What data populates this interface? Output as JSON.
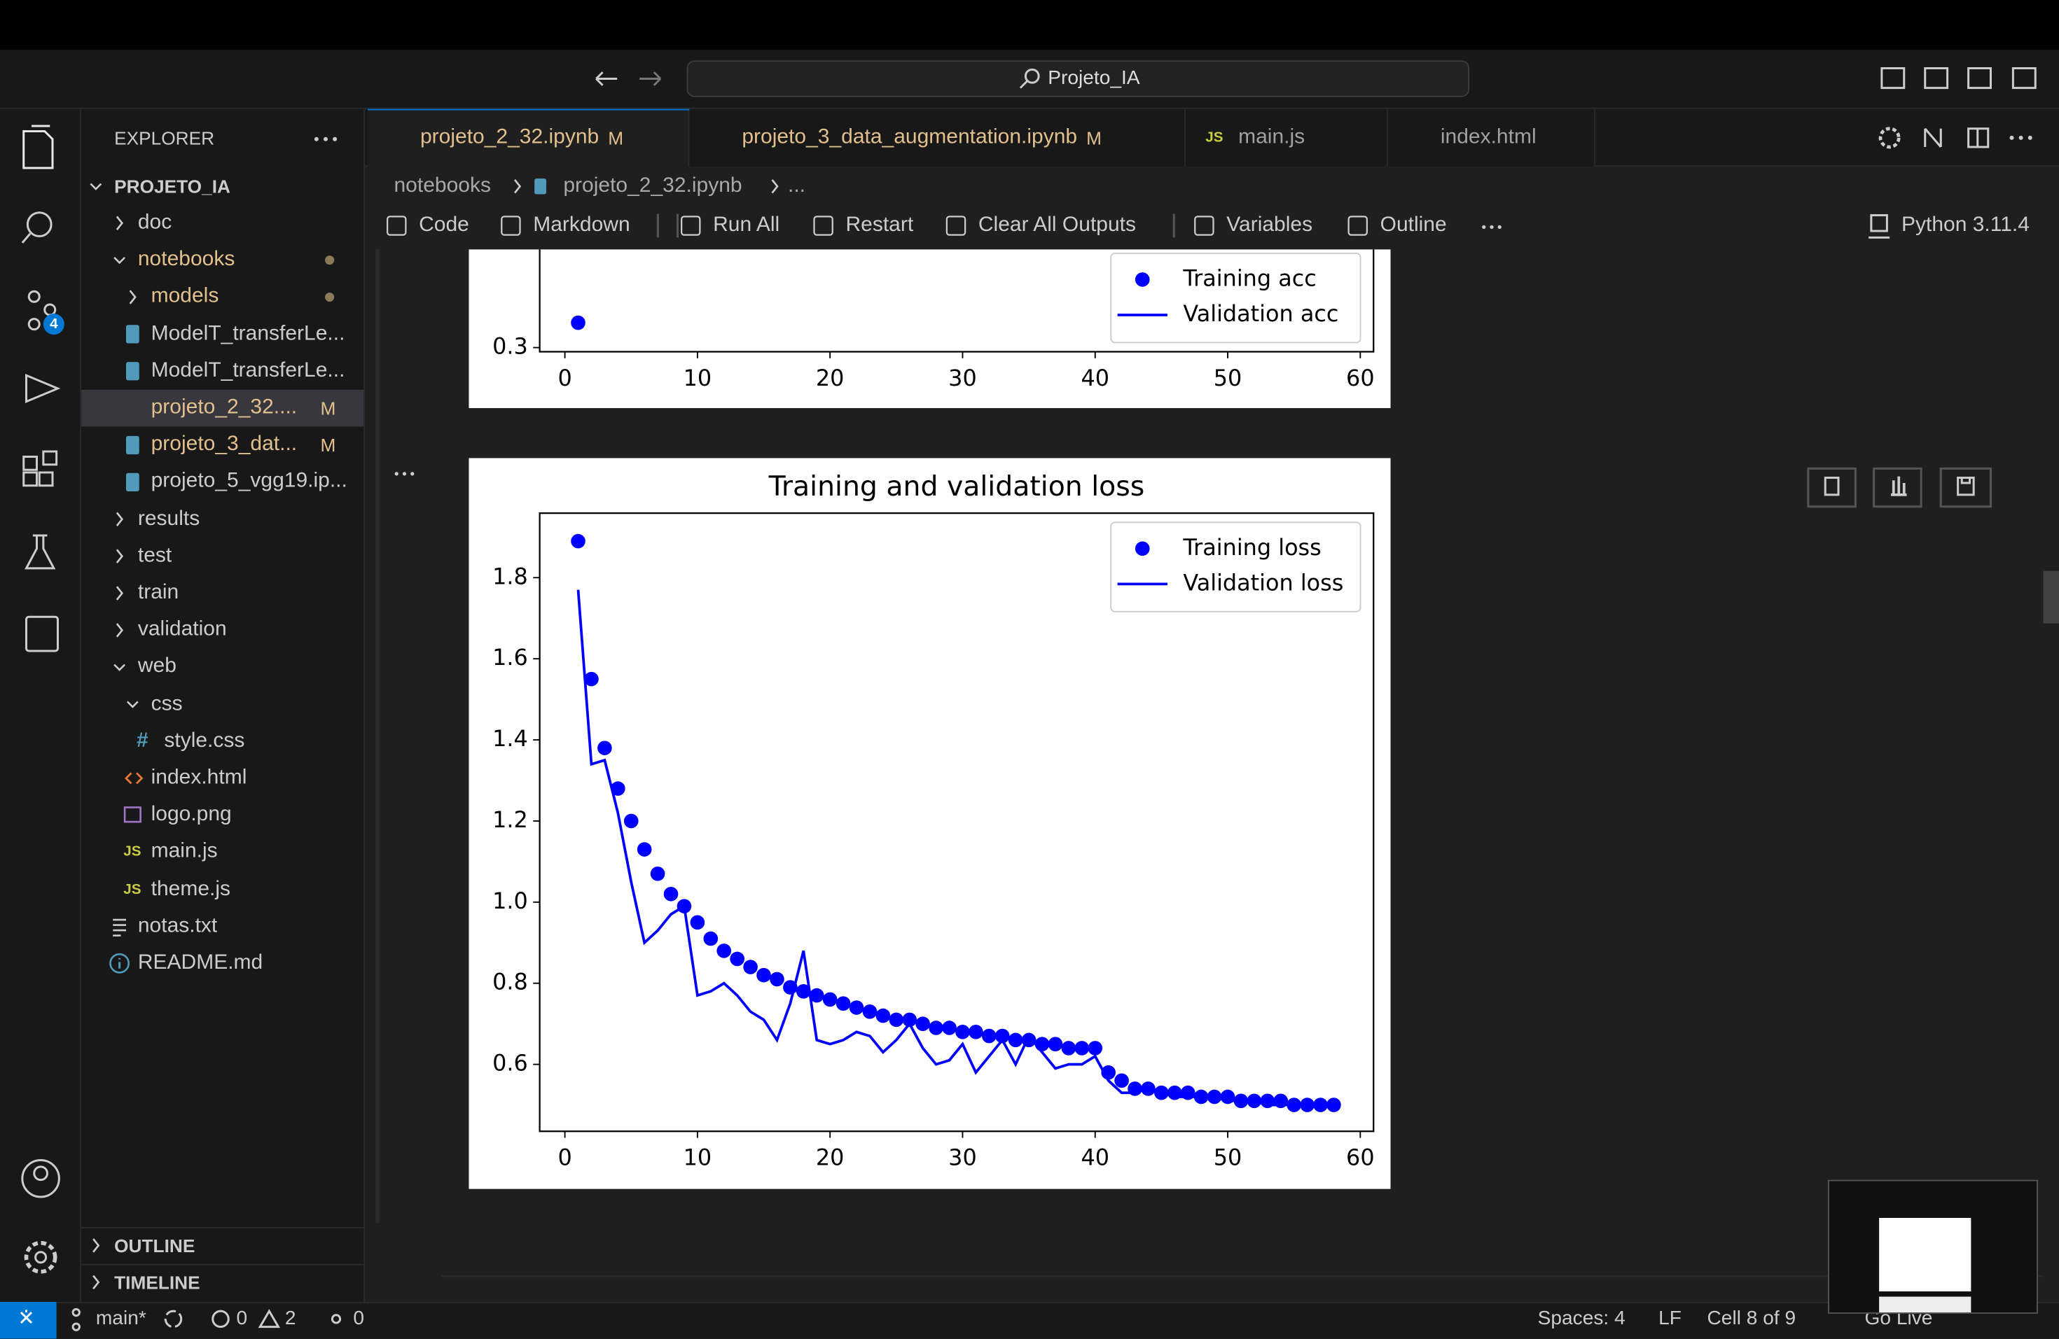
{
  "title_bar": {
    "search": "Projeto_IA"
  },
  "activity_bar": {
    "source_control_badge": "4"
  },
  "tabs": [
    {
      "label": "projeto_2_32.ipynb",
      "badge": "M",
      "kind": "notebook",
      "active": true
    },
    {
      "label": "projeto_3_data_augmentation.ipynb",
      "badge": "M",
      "kind": "notebook"
    },
    {
      "label": "main.js",
      "kind": "js",
      "icon_text": "JS"
    },
    {
      "label": "index.html",
      "kind": "html"
    }
  ],
  "explorer": {
    "title": "EXPLORER",
    "root": "PROJETO_IA",
    "items": [
      {
        "label": "doc",
        "kind": "folder"
      },
      {
        "label": "notebooks",
        "kind": "folder",
        "expanded": true,
        "modified": true,
        "children": [
          {
            "label": "models",
            "kind": "folder",
            "modified": true
          },
          {
            "label": "ModelT_transferLe...",
            "kind": "notebook"
          },
          {
            "label": "ModelT_transferLe...",
            "kind": "notebook"
          },
          {
            "label": "projeto_2_32....",
            "kind": "notebook",
            "badge": "M",
            "selected": true
          },
          {
            "label": "projeto_3_dat...",
            "kind": "notebook",
            "badge": "M"
          },
          {
            "label": "projeto_5_vgg19.ip...",
            "kind": "notebook"
          }
        ]
      },
      {
        "label": "results",
        "kind": "folder"
      },
      {
        "label": "test",
        "kind": "folder"
      },
      {
        "label": "train",
        "kind": "folder"
      },
      {
        "label": "validation",
        "kind": "folder"
      },
      {
        "label": "web",
        "kind": "folder",
        "expanded": true,
        "children": [
          {
            "label": "css",
            "kind": "folder",
            "expanded": true,
            "children": [
              {
                "label": "style.css",
                "kind": "css",
                "icon_text": "#"
              }
            ]
          },
          {
            "label": "index.html",
            "kind": "html"
          },
          {
            "label": "logo.png",
            "kind": "image"
          },
          {
            "label": "main.js",
            "kind": "js",
            "icon_text": "JS"
          },
          {
            "label": "theme.js",
            "kind": "js",
            "icon_text": "JS"
          }
        ]
      },
      {
        "label": "notas.txt",
        "kind": "text"
      },
      {
        "label": "README.md",
        "kind": "info"
      }
    ],
    "sections": [
      "OUTLINE",
      "TIMELINE"
    ]
  },
  "breadcrumb": [
    "notebooks",
    "projeto_2_32.ipynb",
    "..."
  ],
  "toolbar": {
    "actions": [
      "Code",
      "Markdown",
      "Run All",
      "Restart",
      "Clear All Outputs",
      "Variables",
      "Outline"
    ],
    "kernel": "Python 3.11.4"
  },
  "status_bar": {
    "branch": "main*",
    "errors": "0",
    "warnings": "2",
    "ports": "0",
    "right": [
      "Spaces: 4",
      "LF",
      "Cell 8 of 9",
      "Go Live"
    ]
  },
  "chart_data": [
    {
      "type": "line",
      "x": [
        1
      ],
      "xlim": [
        -1.9,
        61
      ],
      "xticks": [
        0,
        10,
        20,
        30,
        40,
        50,
        60
      ],
      "ylim": [
        0.295,
        0.466
      ],
      "yticks": [
        0.3
      ],
      "legend": "lower right",
      "series": [
        {
          "name": "Training acc",
          "color": "#0000ff",
          "style": "dots",
          "values": [
            0.33
          ]
        },
        {
          "name": "Validation acc",
          "color": "#0000ff",
          "style": "line",
          "values": [
            null
          ]
        }
      ]
    },
    {
      "type": "line",
      "title": "Training and validation loss",
      "x": [
        1,
        2,
        3,
        4,
        5,
        6,
        7,
        8,
        9,
        10,
        11,
        12,
        13,
        14,
        15,
        16,
        17,
        18,
        19,
        20,
        21,
        22,
        23,
        24,
        25,
        26,
        27,
        28,
        29,
        30,
        31,
        32,
        33,
        34,
        35,
        36,
        37,
        38,
        39,
        40,
        41,
        42,
        43,
        44,
        45,
        46,
        47,
        48,
        49,
        50,
        51,
        52,
        53,
        54,
        55,
        56,
        57,
        58
      ],
      "xlim": [
        -1.9,
        61
      ],
      "xticks": [
        0,
        10,
        20,
        30,
        40,
        50,
        60
      ],
      "ylim": [
        0.435,
        1.959
      ],
      "yticks": [
        0.6,
        0.8,
        {
          "value": 1,
          "label": "1.0"
        },
        1.2,
        1.4,
        1.6,
        1.8
      ],
      "legend": "upper right",
      "series": [
        {
          "name": "Training loss",
          "color": "#0000ff",
          "style": "dots",
          "values": [
            1.89,
            1.55,
            1.38,
            1.28,
            1.2,
            1.13,
            1.07,
            1.02,
            0.99,
            0.95,
            0.91,
            0.88,
            0.86,
            0.84,
            0.82,
            0.81,
            0.79,
            0.78,
            0.77,
            0.76,
            0.75,
            0.74,
            0.73,
            0.72,
            0.71,
            0.71,
            0.7,
            0.69,
            0.69,
            0.68,
            0.68,
            0.67,
            0.67,
            0.66,
            0.66,
            0.65,
            0.65,
            0.64,
            0.64,
            0.64,
            0.58,
            0.56,
            0.54,
            0.54,
            0.53,
            0.53,
            0.53,
            0.52,
            0.52,
            0.52,
            0.51,
            0.51,
            0.51,
            0.51,
            0.5,
            0.5,
            0.5,
            0.5
          ]
        },
        {
          "name": "Validation loss",
          "color": "#0000ff",
          "style": "line",
          "values": [
            1.77,
            1.34,
            1.35,
            1.22,
            1.05,
            0.9,
            0.93,
            0.97,
            0.99,
            0.77,
            0.78,
            0.8,
            0.77,
            0.73,
            0.71,
            0.66,
            0.75,
            0.88,
            0.66,
            0.65,
            0.66,
            0.68,
            0.67,
            0.63,
            0.66,
            0.7,
            0.64,
            0.6,
            0.61,
            0.65,
            0.58,
            0.62,
            0.66,
            0.6,
            0.67,
            0.63,
            0.59,
            0.6,
            0.6,
            0.62,
            0.56,
            0.53,
            0.53,
            0.54,
            0.53,
            0.52,
            0.52,
            0.52,
            0.52,
            0.51,
            0.51,
            0.51,
            0.5,
            0.5,
            0.5,
            0.5,
            0.5,
            0.5
          ]
        }
      ]
    }
  ]
}
